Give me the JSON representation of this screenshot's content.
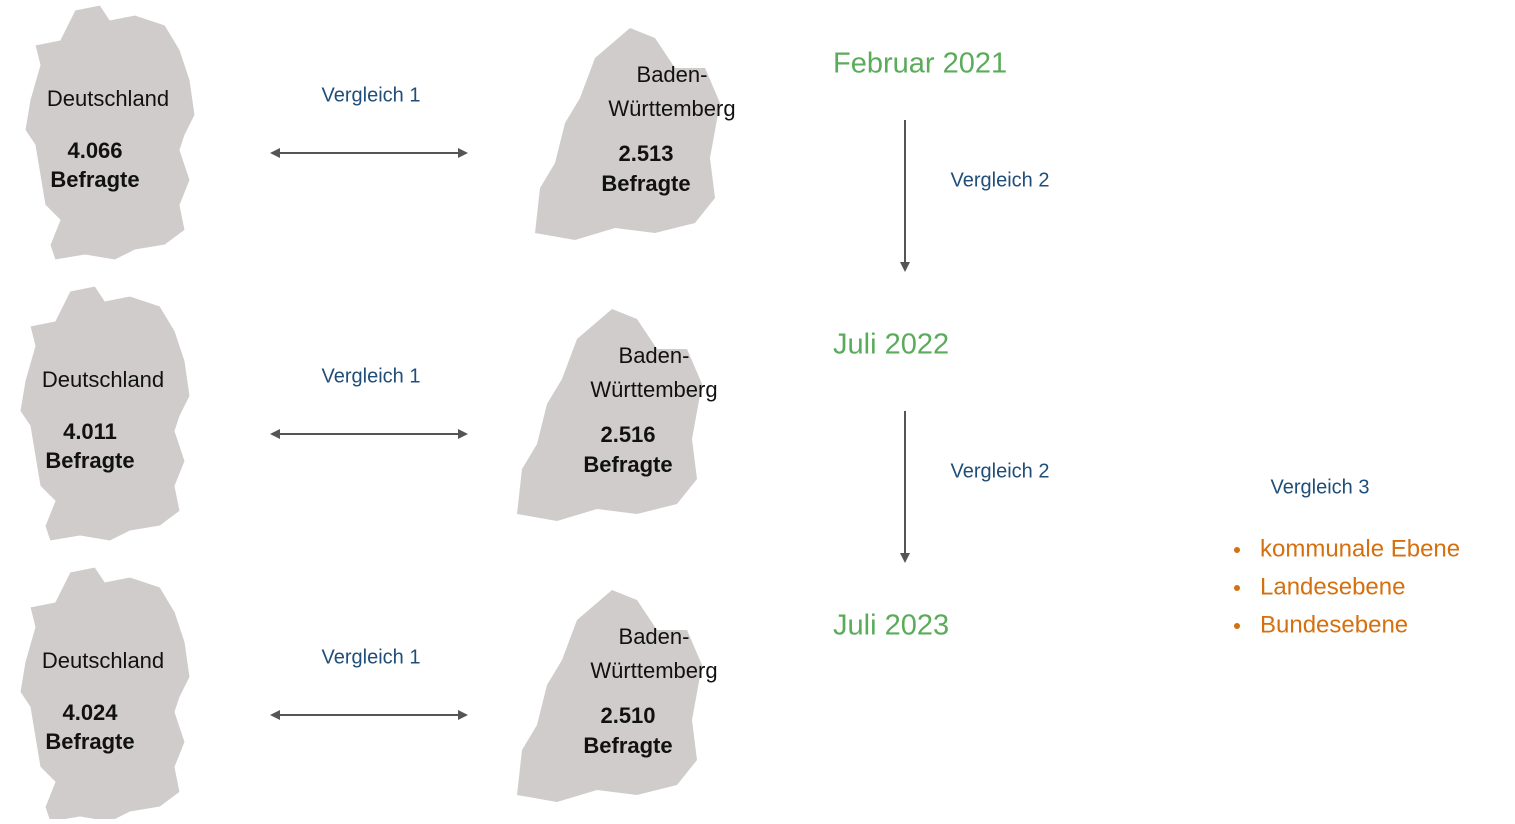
{
  "rows": [
    {
      "country": {
        "label": "Deutschland",
        "count": "4.066",
        "unit": "Befragte"
      },
      "comparison": "Vergleich 1",
      "state": {
        "label_lines": [
          "Baden-",
          "Württemberg"
        ],
        "count": "2.513",
        "unit": "Befragte"
      },
      "date": "Februar 2021"
    },
    {
      "country": {
        "label": "Deutschland",
        "count": "4.011",
        "unit": "Befragte"
      },
      "comparison": "Vergleich 1",
      "state": {
        "label_lines": [
          "Baden-",
          "Württemberg"
        ],
        "count": "2.516",
        "unit": "Befragte"
      },
      "date": "Juli 2022"
    },
    {
      "country": {
        "label": "Deutschland",
        "count": "4.024",
        "unit": "Befragte"
      },
      "comparison": "Vergleich 1",
      "state": {
        "label_lines": [
          "Baden-",
          "Württemberg"
        ],
        "count": "2.510",
        "unit": "Befragte"
      },
      "date": "Juli 2023"
    }
  ],
  "transitions": [
    "Vergleich 2",
    "Vergleich 2"
  ],
  "vergleich3": {
    "label": "Vergleich 3",
    "items": [
      "kommunale Ebene",
      "Landesebene",
      "Bundesebene"
    ]
  }
}
